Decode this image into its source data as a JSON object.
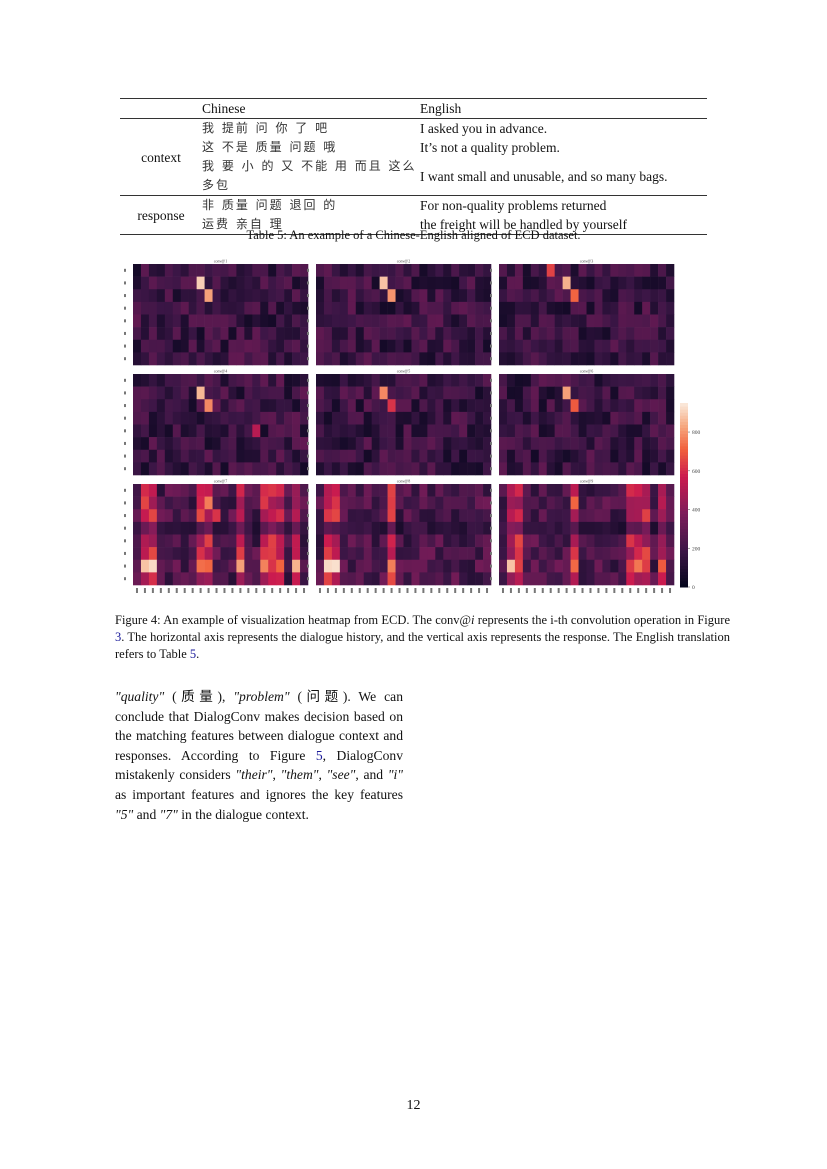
{
  "table": {
    "headers": [
      "",
      "Chinese",
      "English"
    ],
    "groups": [
      {
        "label": "context",
        "rows": [
          {
            "zh": "我 提前 问 你 了 吧",
            "en": "I asked you in advance."
          },
          {
            "zh": "这 不是 质量 问题 哦",
            "en": "It’s not a quality problem."
          },
          {
            "zh": "我 要 小 的 又 不能 用 而且 这么 多包",
            "en": "I want small and unusable, and so many bags."
          }
        ]
      },
      {
        "label": "response",
        "rows": [
          {
            "zh": "非 质量 问题 退回 的",
            "en": "For non-quality problems returned"
          },
          {
            "zh": "运费 亲自 理",
            "en": "the freight will be handled by yourself"
          }
        ]
      }
    ],
    "caption": "Table 5: An example of a Chinese-English aligned of ECD dataset."
  },
  "chart_data": {
    "type": "heatmap",
    "panels": [
      "conv@1",
      "conv@2",
      "conv@3",
      "conv@4",
      "conv@5",
      "conv@6",
      "conv@7",
      "conv@8",
      "conv@9"
    ],
    "rows": 8,
    "cols": 22,
    "colormap": "rocket",
    "colorbar": {
      "range": [
        0,
        950
      ],
      "ticks": [
        0,
        200,
        400,
        600,
        800
      ]
    },
    "hot_cells": [
      [
        [
          1,
          8,
          900
        ],
        [
          2,
          9,
          820
        ]
      ],
      [
        [
          1,
          8,
          880
        ],
        [
          2,
          9,
          800
        ]
      ],
      [
        [
          0,
          6,
          650
        ],
        [
          1,
          8,
          850
        ],
        [
          2,
          9,
          720
        ]
      ],
      [
        [
          1,
          8,
          860
        ],
        [
          2,
          9,
          780
        ],
        [
          4,
          15,
          520
        ]
      ],
      [
        [
          1,
          8,
          780
        ],
        [
          2,
          9,
          620
        ]
      ],
      [
        [
          1,
          8,
          820
        ],
        [
          2,
          9,
          700
        ]
      ],
      [
        [
          6,
          1,
          880
        ],
        [
          6,
          2,
          920
        ],
        [
          1,
          9,
          760
        ],
        [
          2,
          10,
          620
        ],
        [
          6,
          20,
          850
        ]
      ],
      [
        [
          6,
          1,
          920
        ],
        [
          6,
          2,
          930
        ],
        [
          1,
          9,
          640
        ]
      ],
      [
        [
          6,
          1,
          880
        ],
        [
          1,
          9,
          720
        ],
        [
          6,
          20,
          700
        ]
      ]
    ],
    "strong_columns": [
      [],
      [],
      [],
      [],
      [],
      [],
      [
        1,
        2,
        8,
        9,
        13,
        16,
        17,
        18,
        20
      ],
      [
        1,
        2,
        9
      ],
      [
        1,
        2,
        9,
        16,
        17,
        18,
        20
      ]
    ]
  },
  "figure_caption": {
    "prefix": "Figure 4: An example of visualization heatmap from ECD. The conv@",
    "italic": "i",
    "middle": " represents the i-th convolution operation in Figure ",
    "ref1": "3",
    "middle2": ". The horizontal axis represents the dialogue history, and the vertical axis represents the response. The English translation refers to Table ",
    "ref2": "5",
    "end": "."
  },
  "body": {
    "q1": "\"quality\"",
    "t1": " (质量), ",
    "q2": "\"problem\"",
    "t2": " (问题). We can conclude that DialogConv makes decision based on the matching features between dialogue context and responses. According to Figure ",
    "ref": "5",
    "t3": ", DialogConv mistakenly considers ",
    "q3": "\"their\"",
    "t4": ", ",
    "q4": "\"them\"",
    "t5": ", ",
    "q5": "\"see\"",
    "t6": ", and ",
    "q6": "\"i\"",
    "t7": " as important features and ignores the key features ",
    "q7": "\"5\"",
    "t8": " and ",
    "q8": "\"7\"",
    "t9": " in the dialogue context."
  },
  "page_number": "12"
}
